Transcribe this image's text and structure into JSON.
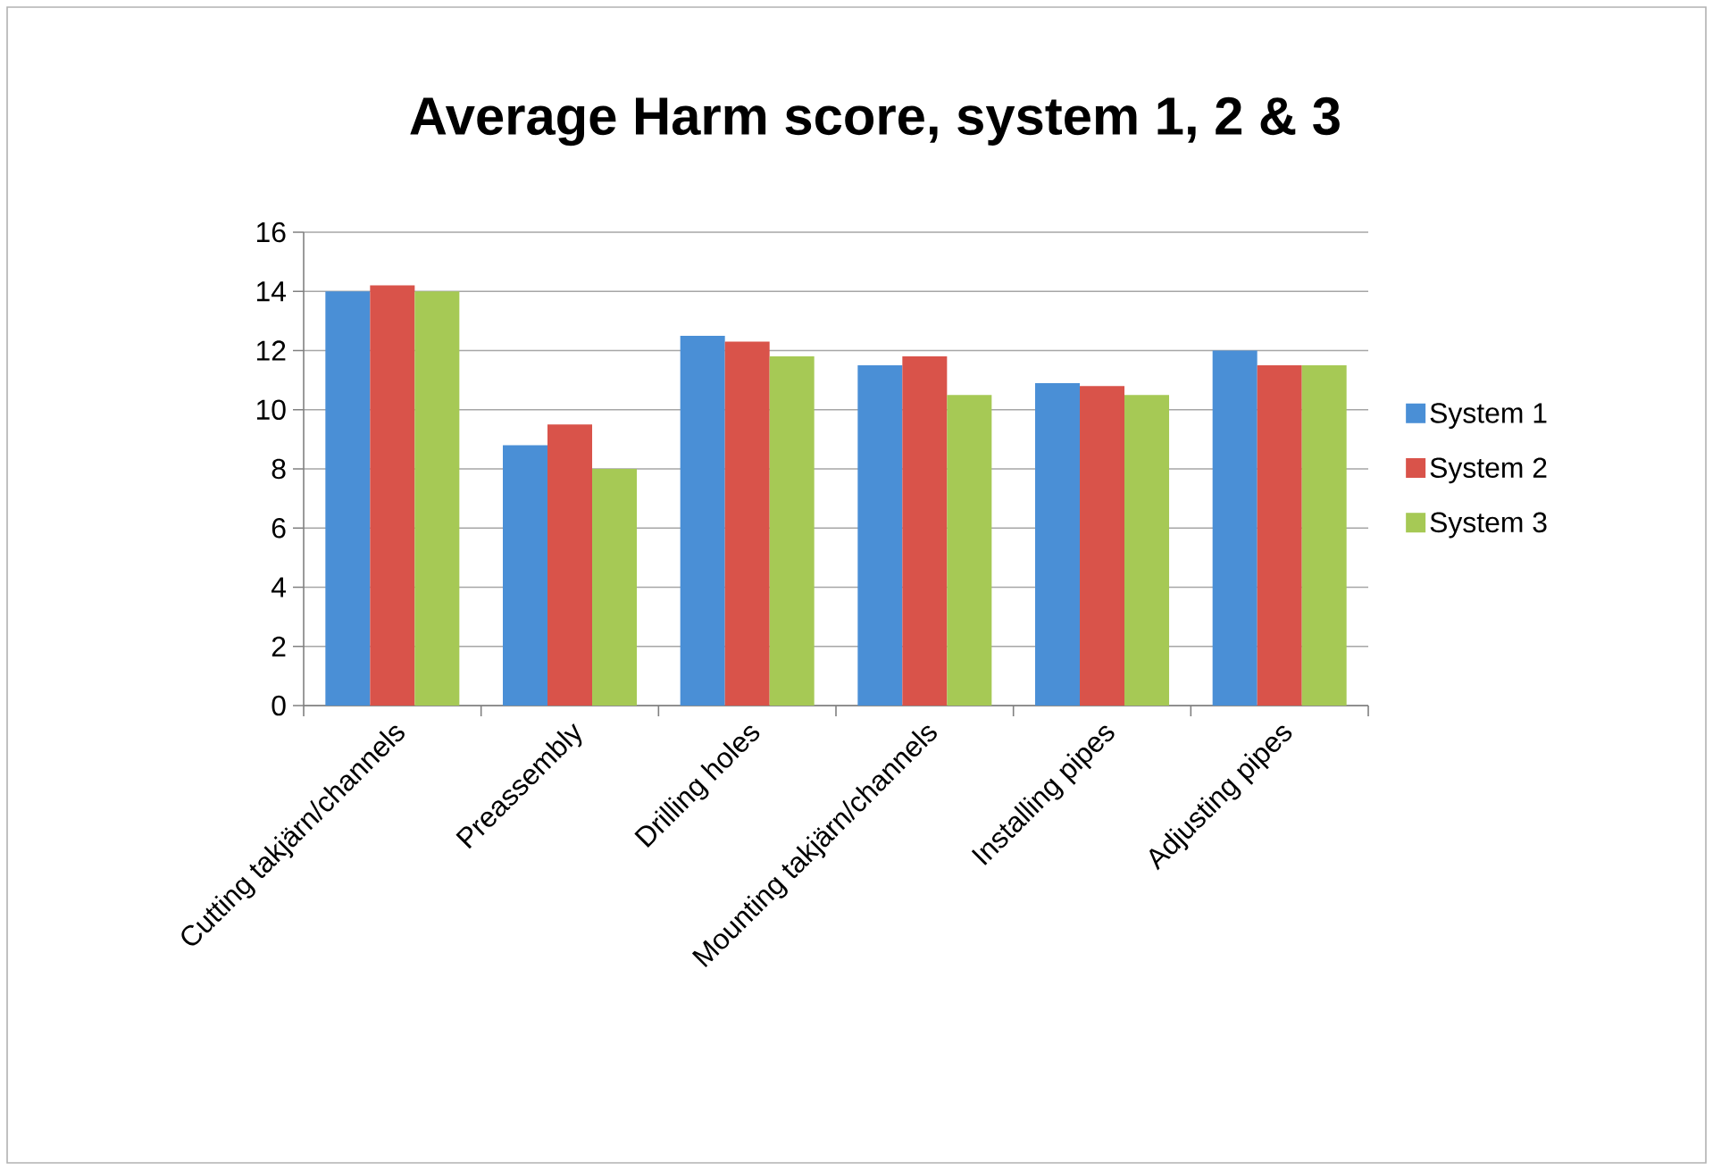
{
  "chart_data": {
    "type": "bar",
    "title": "Average Harm score, system 1, 2 & 3",
    "categories": [
      "Cutting takjärn/channels",
      "Preassembly",
      "Drilling holes",
      "Mounting takjärn/channels",
      "Installing pipes",
      "Adjusting pipes"
    ],
    "series": [
      {
        "name": "System 1",
        "color": "#4a8fd6",
        "values": [
          14.0,
          8.8,
          12.5,
          11.5,
          10.9,
          12.0
        ]
      },
      {
        "name": "System 2",
        "color": "#d9534a",
        "values": [
          14.2,
          9.5,
          12.3,
          11.8,
          10.8,
          11.5
        ]
      },
      {
        "name": "System 3",
        "color": "#a6c955",
        "values": [
          14.0,
          8.0,
          11.8,
          10.5,
          10.5,
          11.5
        ]
      }
    ],
    "ylim": [
      0,
      16
    ],
    "yticks": [
      0,
      2,
      4,
      6,
      8,
      10,
      12,
      14,
      16
    ],
    "grid": "y",
    "legend": "right"
  }
}
